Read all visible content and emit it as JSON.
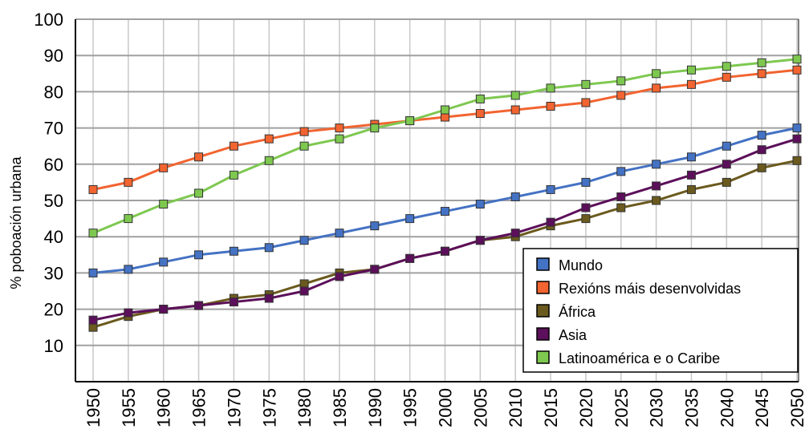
{
  "chart_data": {
    "type": "line",
    "ylabel": "% poboación urbana",
    "ylim": [
      0,
      100
    ],
    "yticks": [
      10,
      20,
      30,
      40,
      50,
      60,
      70,
      80,
      90,
      100
    ],
    "x": [
      1950,
      1955,
      1960,
      1965,
      1970,
      1975,
      1980,
      1985,
      1990,
      1995,
      2000,
      2005,
      2010,
      2015,
      2020,
      2025,
      2030,
      2035,
      2040,
      2045,
      2050
    ],
    "grid": true,
    "legend_position": "bottom-right",
    "series": [
      {
        "name": "Mundo",
        "color": "#4472c4",
        "values": [
          30,
          31,
          33,
          35,
          36,
          37,
          39,
          41,
          43,
          45,
          47,
          49,
          51,
          53,
          55,
          58,
          60,
          62,
          65,
          68,
          70
        ]
      },
      {
        "name": "Rexións máis desenvolvidas",
        "color": "#f26430",
        "values": [
          53,
          55,
          59,
          62,
          65,
          67,
          69,
          70,
          71,
          72,
          73,
          74,
          75,
          76,
          77,
          79,
          81,
          82,
          84,
          85,
          86
        ]
      },
      {
        "name": "África",
        "color": "#6b5a1e",
        "values": [
          15,
          18,
          20,
          21,
          23,
          24,
          27,
          30,
          31,
          34,
          36,
          39,
          40,
          43,
          45,
          48,
          50,
          53,
          55,
          59,
          61
        ]
      },
      {
        "name": "Asia",
        "color": "#5c0f5a",
        "values": [
          17,
          19,
          20,
          21,
          22,
          23,
          25,
          29,
          31,
          34,
          36,
          39,
          41,
          44,
          48,
          51,
          54,
          57,
          60,
          64,
          67
        ]
      },
      {
        "name": "Latinoamérica e o Caribe",
        "color": "#7ec850",
        "values": [
          41,
          45,
          49,
          52,
          57,
          61,
          65,
          67,
          70,
          72,
          75,
          78,
          79,
          81,
          82,
          83,
          85,
          86,
          87,
          88,
          89
        ]
      }
    ]
  }
}
